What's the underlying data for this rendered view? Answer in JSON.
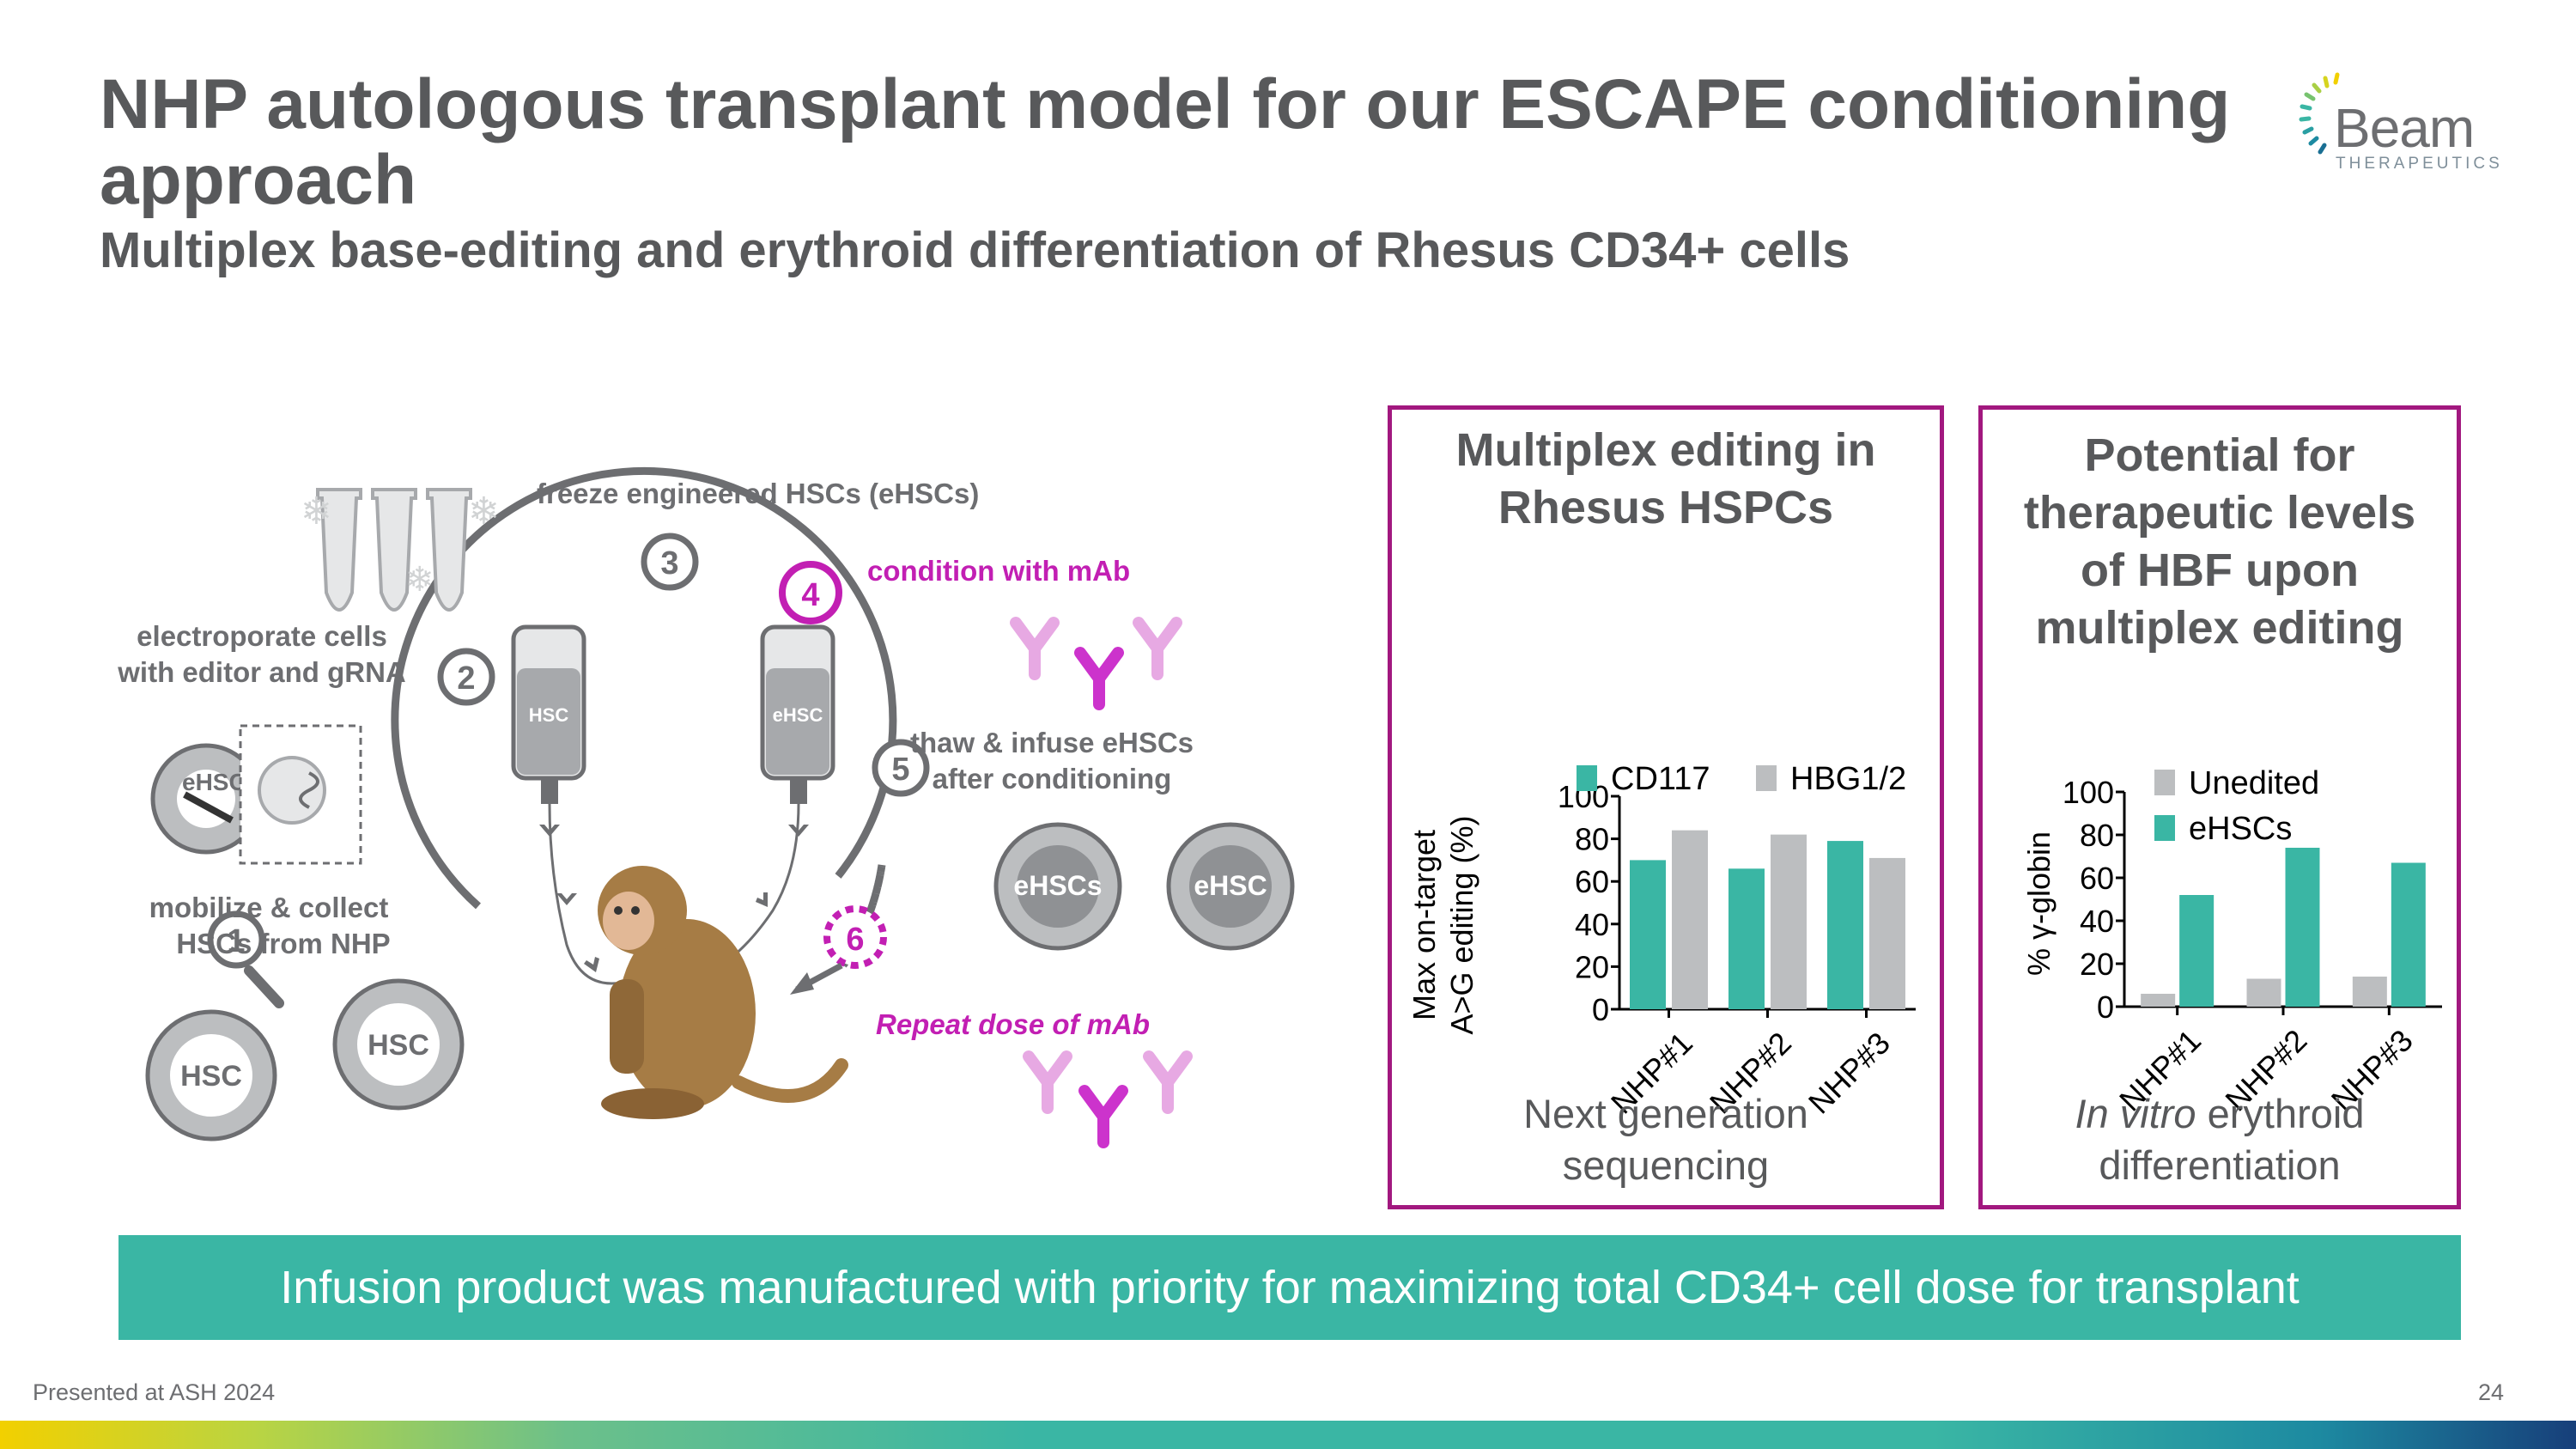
{
  "slide": {
    "title": "NHP autologous transplant model for our ESCAPE conditioning approach",
    "subtitle": "Multiplex base-editing and erythroid differentiation of Rhesus CD34+ cells",
    "banner": "Infusion product was manufactured with priority for maximizing total CD34+ cell dose for transplant",
    "footer_left": "Presented at ASH 2024",
    "page_number": "24"
  },
  "logo": {
    "word": "Beam",
    "sub": "THERAPEUTICS"
  },
  "diagram": {
    "step1": "1",
    "step2": "2",
    "step3": "3",
    "step4": "4",
    "step5": "5",
    "step6": "6",
    "freeze": "freeze engineered HSCs (eHSCs)",
    "condition": "condition with mAb",
    "electroporate_1": "electroporate cells",
    "electroporate_2": "with editor and gRNA",
    "thaw_1": "thaw & infuse eHSCs",
    "thaw_2": "after conditioning",
    "mobilize_1": "mobilize & collect",
    "mobilize_2": "HSCs from NHP",
    "repeat": "Repeat  dose of mAb",
    "bag_hsc": "HSC",
    "bag_ehsc": "eHSC",
    "cell_ehsc": "eHSC",
    "cell_ehscs": "eHSCs",
    "cell_ehsc2": "eHSC",
    "cell_hsc1": "HSC",
    "cell_hsc2": "HSC"
  },
  "colors": {
    "teal": "#3ab6a4",
    "gray_bar": "#bcbec0",
    "magenta": "#a2187f",
    "mab_pink": "#cc33cc"
  },
  "chart_data": [
    {
      "type": "bar",
      "title": "Multiplex editing in Rhesus HSPCs",
      "title_lines": [
        "Multiplex editing in",
        "Rhesus HSPCs"
      ],
      "ylabel_lines": [
        "Max on-target",
        "A>G editing (%)"
      ],
      "xlabel_lines": [
        "Next generation",
        "sequencing"
      ],
      "categories": [
        "NHP#1",
        "NHP#2",
        "NHP#3"
      ],
      "series": [
        {
          "name": "CD117",
          "color": "#3ab6a4",
          "values": [
            70,
            66,
            79
          ]
        },
        {
          "name": "HBG1/2",
          "color": "#bcbec0",
          "values": [
            84,
            82,
            71
          ]
        }
      ],
      "ylim": [
        0,
        100
      ],
      "yticks": [
        "0",
        "20",
        "40",
        "60",
        "80",
        "100"
      ],
      "legend": "top"
    },
    {
      "type": "bar",
      "title": "Potential for therapeutic levels of HBF upon multiplex editing",
      "title_lines": [
        "Potential for",
        "therapeutic levels",
        "of HBF upon",
        "multiplex editing"
      ],
      "ylabel": "% γ-globin",
      "xlabel_italic": "In vitro",
      "xlabel_rest": " erythroid",
      "xlabel_line2": "differentiation",
      "categories": [
        "NHP#1",
        "NHP#2",
        "NHP#3"
      ],
      "series": [
        {
          "name": "Unedited",
          "color": "#bcbec0",
          "values": [
            6,
            13,
            14
          ]
        },
        {
          "name": "eHSCs",
          "color": "#3ab6a4",
          "values": [
            52,
            74,
            67
          ]
        }
      ],
      "ylim": [
        0,
        100
      ],
      "yticks": [
        "0",
        "20",
        "40",
        "60",
        "80",
        "100"
      ],
      "legend": "top-left"
    }
  ]
}
